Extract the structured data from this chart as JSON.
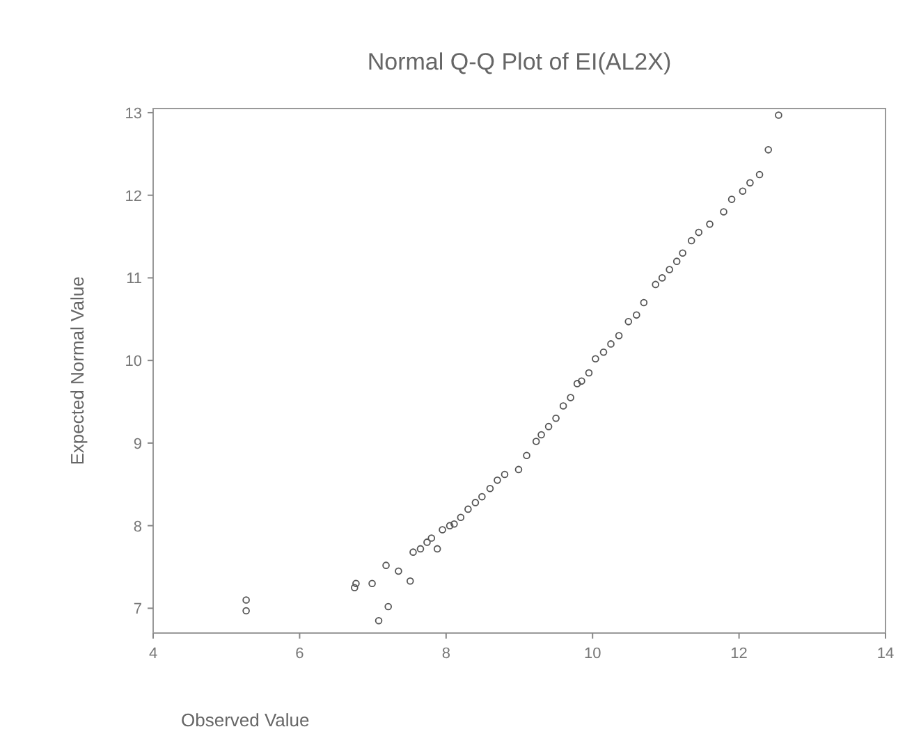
{
  "chart_data": {
    "type": "scatter",
    "title": "Normal Q-Q Plot of EI(AL2X)",
    "xlabel": "Observed Value",
    "ylabel": "Expected Normal Value",
    "xlim": [
      4,
      14
    ],
    "xticks": [
      4,
      6,
      8,
      10,
      12,
      14
    ],
    "ylim": [
      6.7,
      13.05
    ],
    "yticks": [
      7,
      8,
      9,
      10,
      11,
      12,
      13
    ],
    "grid": false,
    "marker": "circle",
    "x": [
      5.27,
      5.27,
      6.75,
      6.77,
      6.99,
      7.08,
      7.18,
      7.21,
      7.35,
      7.51,
      7.55,
      7.65,
      7.74,
      7.8,
      7.88,
      7.95,
      8.05,
      8.11,
      8.2,
      8.3,
      8.4,
      8.49,
      8.6,
      8.7,
      8.8,
      8.99,
      9.1,
      9.23,
      9.3,
      9.4,
      9.5,
      9.6,
      9.7,
      9.79,
      9.85,
      9.95,
      10.04,
      10.15,
      10.25,
      10.36,
      10.49,
      10.6,
      10.7,
      10.86,
      10.95,
      11.05,
      11.15,
      11.23,
      11.35,
      11.45,
      11.6,
      11.79,
      11.9,
      12.05,
      12.15,
      12.28,
      12.4,
      12.54
    ],
    "series": [
      {
        "color": "#555555",
        "values": [
          6.97,
          7.1,
          7.25,
          7.3,
          7.3,
          6.85,
          7.52,
          7.02,
          7.45,
          7.33,
          7.68,
          7.72,
          7.8,
          7.85,
          7.72,
          7.95,
          8.0,
          8.02,
          8.1,
          8.2,
          8.28,
          8.35,
          8.45,
          8.55,
          8.62,
          8.68,
          8.85,
          9.02,
          9.1,
          9.2,
          9.3,
          9.45,
          9.55,
          9.72,
          9.75,
          9.85,
          10.02,
          10.1,
          10.2,
          10.3,
          10.47,
          10.55,
          10.7,
          10.92,
          11.0,
          11.1,
          11.2,
          11.3,
          11.45,
          11.55,
          11.65,
          11.8,
          11.95,
          12.05,
          12.15,
          12.25,
          12.55,
          12.97
        ]
      }
    ]
  }
}
